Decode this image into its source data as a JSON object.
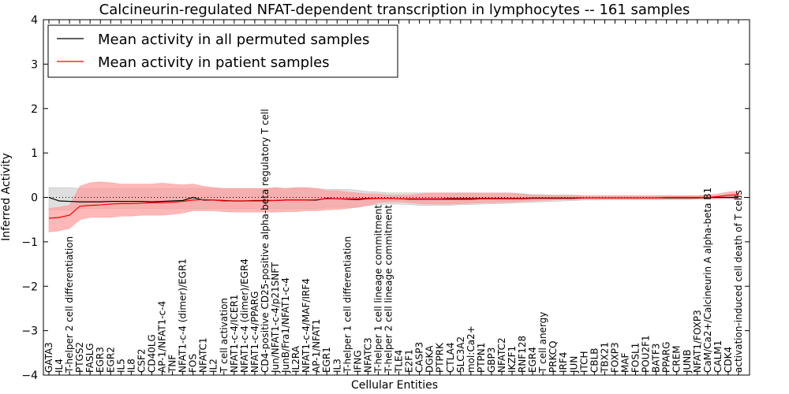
{
  "chart_data": {
    "type": "line",
    "title": "Calcineurin-regulated NFAT-dependent transcription in lymphocytes -- 161 samples",
    "xlabel": "Cellular Entities",
    "ylabel": "Inferred Activity",
    "ylim": [
      -4,
      4
    ],
    "yticks": [
      -4,
      -3,
      -2,
      -1,
      0,
      1,
      2,
      3,
      4
    ],
    "ytick_labels": [
      "−4",
      "−3",
      "−2",
      "−1",
      "0",
      "1",
      "2",
      "3",
      "4"
    ],
    "zero_line": "dotted",
    "legend_position": "top-left",
    "colors": {
      "permuted": "#000000",
      "patient": "#ff0000",
      "permuted_band": "#bfbfbf",
      "patient_band": "#ff9a9a"
    },
    "categories": [
      "GATA3",
      "IL4",
      "T-helper 2 cell differentiation",
      "PTGS2",
      "FASLG",
      "EGR3",
      "EGR2",
      "IL5",
      "IL8",
      "CSF2",
      "CD40LG",
      "AP-1/NFAT1-c-4",
      "TNF",
      "NFAT1-c-4 (dimer)/EGR1",
      "FOS",
      "NFATC1",
      "IL2",
      "T cell activation",
      "NFAT1-c-4/ICER1",
      "NFAT1-c-4 (dimer)/EGR4",
      "NFAT1-c-4/PPARG",
      "CD4-positive CD25-positive alpha-beta regulatory T cell",
      "Jun/NFAT1-c-4/p21SNFT",
      "JunB/Fra1/NFAT1-c-4",
      "IL2RA",
      "NFAT1-c-4/MAF/IRF4",
      "AP-1/NFAT1",
      "EGR1",
      "IL3",
      "T-helper 1 cell differentiation",
      "IFNG",
      "NFATC3",
      "T-helper 1 cell lineage commitment",
      "T-helper 2 cell lineage commitment",
      "TLE4",
      "E2F1",
      "CASP3",
      "DGKA",
      "PTPRK",
      "CTLA4",
      "SLC3A2",
      "mol:Ca2+",
      "PTPN1",
      "GBP3",
      "NFATC2",
      "IKZF1",
      "RNF128",
      "EGR4",
      "T cell anergy",
      "PRKCQ",
      "IRF4",
      "JUN",
      "ITCH",
      "CBLB",
      "TBX21",
      "FOXP3",
      "MAF",
      "FOSL1",
      "POU2F1",
      "BATF3",
      "PPARG",
      "CREM",
      "JUNB",
      "NFAT1/FOXP3",
      "CaM/Ca2+/Calcineurin A alpha-beta B1",
      "CALM1",
      "CDK4",
      "activation-induced cell death of T cells"
    ],
    "series": [
      {
        "name": "Mean activity in all permuted samples",
        "values": [
          0.0,
          -0.08,
          -0.09,
          -0.1,
          -0.1,
          -0.1,
          -0.09,
          -0.09,
          -0.09,
          -0.09,
          -0.1,
          -0.09,
          -0.08,
          -0.07,
          0.0,
          -0.06,
          -0.06,
          -0.07,
          -0.08,
          -0.08,
          -0.07,
          -0.07,
          -0.07,
          -0.06,
          -0.06,
          -0.06,
          -0.06,
          -0.02,
          -0.03,
          -0.04,
          -0.05,
          -0.03,
          -0.02,
          -0.02,
          -0.03,
          -0.04,
          -0.04,
          -0.04,
          -0.04,
          -0.04,
          -0.04,
          -0.04,
          -0.03,
          -0.03,
          -0.03,
          -0.03,
          -0.03,
          -0.02,
          -0.02,
          -0.02,
          -0.02,
          -0.02,
          -0.01,
          -0.01,
          -0.01,
          -0.01,
          -0.01,
          -0.01,
          -0.01,
          -0.01,
          -0.01,
          -0.01,
          -0.01,
          -0.01,
          0.0,
          0.0,
          0.0,
          0.0
        ],
        "lower": [
          -0.28,
          -0.28,
          -0.28,
          -0.25,
          -0.25,
          -0.25,
          -0.25,
          -0.25,
          -0.25,
          -0.25,
          -0.25,
          -0.25,
          -0.25,
          -0.25,
          -0.25,
          -0.25,
          -0.25,
          -0.25,
          -0.25,
          -0.25,
          -0.25,
          -0.25,
          -0.25,
          -0.25,
          -0.25,
          -0.25,
          -0.25,
          -0.22,
          -0.22,
          -0.22,
          -0.22,
          -0.18,
          -0.16,
          -0.15,
          -0.15,
          -0.16,
          -0.18,
          -0.18,
          -0.18,
          -0.18,
          -0.16,
          -0.16,
          -0.15,
          -0.14,
          -0.14,
          -0.13,
          -0.12,
          -0.11,
          -0.1,
          -0.09,
          -0.08,
          -0.07,
          -0.06,
          -0.06,
          -0.05,
          -0.05,
          -0.05,
          -0.05,
          -0.05,
          -0.05,
          -0.05,
          -0.05,
          -0.05,
          -0.04,
          -0.04,
          -0.03,
          -0.03,
          -0.03
        ],
        "upper": [
          0.22,
          0.22,
          0.22,
          0.2,
          0.2,
          0.2,
          0.2,
          0.2,
          0.2,
          0.2,
          0.2,
          0.2,
          0.2,
          0.2,
          0.2,
          0.2,
          0.2,
          0.2,
          0.2,
          0.2,
          0.2,
          0.2,
          0.2,
          0.2,
          0.2,
          0.2,
          0.2,
          0.18,
          0.18,
          0.18,
          0.16,
          0.13,
          0.12,
          0.1,
          0.1,
          0.1,
          0.1,
          0.1,
          0.1,
          0.1,
          0.1,
          0.1,
          0.08,
          0.08,
          0.08,
          0.08,
          0.07,
          0.06,
          0.06,
          0.05,
          0.05,
          0.05,
          0.04,
          0.04,
          0.04,
          0.04,
          0.04,
          0.04,
          0.04,
          0.04,
          0.04,
          0.04,
          0.04,
          0.04,
          0.03,
          0.03,
          0.03,
          0.03
        ]
      },
      {
        "name": "Mean activity in patient samples",
        "values": [
          -0.47,
          -0.45,
          -0.4,
          -0.2,
          -0.18,
          -0.17,
          -0.15,
          -0.14,
          -0.14,
          -0.13,
          -0.12,
          -0.12,
          -0.11,
          -0.09,
          -0.06,
          -0.05,
          -0.06,
          -0.08,
          -0.08,
          -0.08,
          -0.08,
          -0.08,
          -0.07,
          -0.06,
          -0.06,
          -0.06,
          -0.05,
          -0.03,
          -0.03,
          -0.03,
          -0.03,
          -0.02,
          -0.02,
          -0.02,
          -0.03,
          -0.03,
          -0.03,
          -0.03,
          -0.03,
          -0.02,
          -0.02,
          -0.02,
          -0.02,
          -0.02,
          -0.02,
          -0.02,
          -0.02,
          -0.01,
          -0.01,
          -0.01,
          -0.01,
          -0.01,
          -0.01,
          -0.01,
          -0.01,
          -0.01,
          -0.01,
          -0.01,
          -0.01,
          -0.01,
          0.0,
          0.0,
          0.0,
          0.0,
          0.0,
          0.02,
          0.05,
          0.06
        ],
        "lower": [
          -0.78,
          -0.75,
          -0.7,
          -0.5,
          -0.45,
          -0.45,
          -0.45,
          -0.42,
          -0.42,
          -0.4,
          -0.4,
          -0.4,
          -0.38,
          -0.35,
          -0.3,
          -0.3,
          -0.3,
          -0.32,
          -0.33,
          -0.33,
          -0.33,
          -0.33,
          -0.33,
          -0.32,
          -0.32,
          -0.3,
          -0.3,
          -0.28,
          -0.27,
          -0.25,
          -0.22,
          -0.18,
          -0.12,
          -0.1,
          -0.1,
          -0.12,
          -0.14,
          -0.15,
          -0.15,
          -0.15,
          -0.14,
          -0.13,
          -0.12,
          -0.12,
          -0.11,
          -0.1,
          -0.09,
          -0.08,
          -0.07,
          -0.06,
          -0.05,
          -0.05,
          -0.04,
          -0.04,
          -0.04,
          -0.04,
          -0.04,
          -0.04,
          -0.04,
          -0.04,
          -0.04,
          -0.04,
          -0.04,
          -0.04,
          -0.04,
          -0.03,
          -0.02,
          -0.02
        ],
        "upper": [
          -0.25,
          -0.22,
          -0.18,
          0.25,
          0.33,
          0.35,
          0.33,
          0.3,
          0.3,
          0.3,
          0.3,
          0.32,
          0.3,
          0.28,
          0.3,
          0.25,
          0.22,
          0.2,
          0.2,
          0.2,
          0.2,
          0.2,
          0.22,
          0.2,
          0.22,
          0.22,
          0.2,
          0.15,
          0.15,
          0.12,
          0.1,
          0.08,
          0.08,
          0.05,
          0.05,
          0.05,
          0.08,
          0.1,
          0.1,
          0.1,
          0.1,
          0.1,
          0.1,
          0.1,
          0.1,
          0.1,
          0.08,
          0.06,
          0.06,
          0.05,
          0.05,
          0.05,
          0.04,
          0.04,
          0.04,
          0.04,
          0.04,
          0.04,
          0.04,
          0.04,
          0.04,
          0.04,
          0.04,
          0.04,
          0.05,
          0.08,
          0.12,
          0.14
        ]
      }
    ]
  }
}
